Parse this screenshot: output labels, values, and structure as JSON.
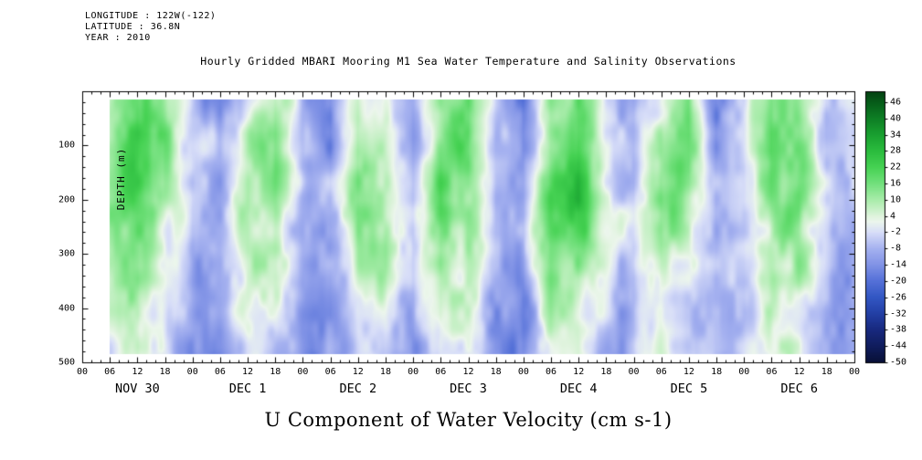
{
  "header": {
    "longitude": "LONGITUDE : 122W(-122)",
    "latitude": "LATITUDE : 36.8N",
    "year": "YEAR : 2010"
  },
  "chart_data": {
    "type": "heatmap",
    "title": "Hourly Gridded MBARI Mooring M1 Sea Water Temperature and Salinity Observations",
    "xlabel": "U Component of Water Velocity (cm s-1)",
    "ylabel": "DEPTH (m)",
    "x_axis": {
      "total_hours": 168,
      "major_tick_hours": 6,
      "minor_tick_hours": 2,
      "hour_labels": [
        "00",
        "06",
        "12",
        "18",
        "00",
        "06",
        "12",
        "18",
        "00",
        "06",
        "12",
        "18",
        "00",
        "06",
        "12",
        "18",
        "00",
        "06",
        "12",
        "18",
        "00",
        "06",
        "12",
        "18",
        "00",
        "06",
        "12",
        "18",
        "00"
      ],
      "day_labels": [
        "NOV 30",
        "DEC 1",
        "DEC 2",
        "DEC 3",
        "DEC 4",
        "DEC 5",
        "DEC 6"
      ]
    },
    "y_axis": {
      "min": 0,
      "max": 500,
      "major_ticks": [
        100,
        200,
        300,
        400,
        500
      ],
      "minor_step": 20
    },
    "colorbar": {
      "min": -50,
      "max": 50,
      "ticks": [
        46,
        40,
        34,
        28,
        22,
        16,
        10,
        4,
        -2,
        -8,
        -14,
        -20,
        -26,
        -32,
        -38,
        -44,
        -50
      ],
      "stops": [
        {
          "v": -50,
          "c": "#081038"
        },
        {
          "v": -44,
          "c": "#101d5e"
        },
        {
          "v": -38,
          "c": "#18297f"
        },
        {
          "v": -32,
          "c": "#2340a6"
        },
        {
          "v": -26,
          "c": "#3357c4"
        },
        {
          "v": -20,
          "c": "#5571d8"
        },
        {
          "v": -14,
          "c": "#8193e6"
        },
        {
          "v": -8,
          "c": "#a6b2f0"
        },
        {
          "v": -2,
          "c": "#d8def8"
        },
        {
          "v": 2,
          "c": "#ecf6ec"
        },
        {
          "v": 4,
          "c": "#def3dc"
        },
        {
          "v": 10,
          "c": "#a8ecaa"
        },
        {
          "v": 16,
          "c": "#72e07c"
        },
        {
          "v": 22,
          "c": "#46d253"
        },
        {
          "v": 28,
          "c": "#2bbc3e"
        },
        {
          "v": 34,
          "c": "#19a030"
        },
        {
          "v": 40,
          "c": "#0e7f25"
        },
        {
          "v": 46,
          "c": "#065c19"
        },
        {
          "v": 50,
          "c": "#044212"
        }
      ]
    },
    "field": {
      "units": "cm s-1",
      "time_step_hours": 6,
      "time_plot_range_hours": [
        6,
        168
      ],
      "depth_plot_range_m": [
        15,
        485
      ],
      "depth_levels": [
        10,
        80,
        150,
        220,
        290,
        360,
        430,
        490
      ],
      "noise": {
        "seed": 7,
        "amp1": 6,
        "scale1x": 20,
        "scale1y": 46,
        "amp2": 3,
        "scale2x": 8,
        "scale2y": 18
      },
      "values": [
        [
          -8,
          4,
          18,
          10,
          -6,
          -14,
          2,
          12,
          -10,
          -16,
          6,
          -2,
          -12,
          8,
          14,
          -8,
          -18,
          10,
          16,
          -6,
          -12,
          4,
          12,
          -14,
          -8,
          16,
          8,
          -10,
          -4
        ],
        [
          -6,
          10,
          22,
          14,
          -4,
          -10,
          8,
          16,
          -6,
          -12,
          12,
          4,
          -8,
          14,
          18,
          -4,
          -14,
          14,
          20,
          -2,
          -8,
          10,
          16,
          -10,
          -4,
          20,
          12,
          -6,
          -2
        ],
        [
          -8,
          12,
          20,
          12,
          -6,
          -8,
          10,
          14,
          -4,
          -10,
          14,
          6,
          -6,
          16,
          16,
          -2,
          -10,
          16,
          22,
          0,
          -6,
          12,
          14,
          -8,
          -2,
          18,
          14,
          -4,
          -4
        ],
        [
          -10,
          14,
          18,
          8,
          -8,
          -6,
          12,
          10,
          -6,
          -8,
          12,
          8,
          -4,
          18,
          12,
          -4,
          -8,
          18,
          24,
          2,
          -4,
          14,
          10,
          -6,
          0,
          14,
          16,
          -2,
          -6
        ],
        [
          -12,
          10,
          14,
          4,
          -10,
          -8,
          8,
          6,
          -8,
          -10,
          8,
          10,
          -6,
          14,
          8,
          -6,
          -10,
          14,
          18,
          0,
          -6,
          10,
          6,
          -8,
          -2,
          10,
          12,
          -4,
          -8
        ],
        [
          -12,
          6,
          10,
          0,
          -12,
          -10,
          4,
          2,
          -10,
          -12,
          4,
          6,
          -8,
          10,
          4,
          -8,
          -12,
          10,
          12,
          -4,
          -8,
          6,
          2,
          -10,
          -6,
          6,
          8,
          -6,
          -10
        ],
        [
          -10,
          2,
          6,
          -4,
          -12,
          -12,
          0,
          -2,
          -12,
          -14,
          0,
          2,
          -10,
          6,
          0,
          -10,
          -14,
          6,
          8,
          -6,
          -10,
          2,
          -2,
          -12,
          -8,
          2,
          4,
          -8,
          -12
        ],
        [
          -10,
          0,
          4,
          -6,
          -12,
          -12,
          -2,
          -4,
          -12,
          -14,
          -2,
          0,
          -10,
          4,
          -2,
          -10,
          -14,
          4,
          6,
          -8,
          -10,
          0,
          -4,
          -12,
          -8,
          0,
          2,
          -8,
          -12
        ]
      ]
    }
  }
}
